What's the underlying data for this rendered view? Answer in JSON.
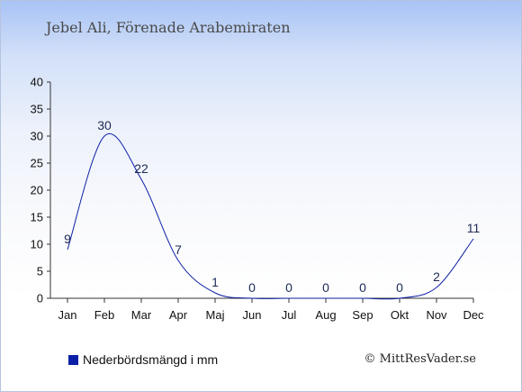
{
  "chart_data": {
    "type": "line",
    "title": "Jebel Ali, Förenade Arabemiraten",
    "categories": [
      "Jan",
      "Feb",
      "Mar",
      "Apr",
      "Maj",
      "Jun",
      "Jul",
      "Aug",
      "Sep",
      "Okt",
      "Nov",
      "Dec"
    ],
    "series": [
      {
        "name": "Nederbördsmängd i mm",
        "values": [
          9,
          30,
          22,
          7,
          1,
          0,
          0,
          0,
          0,
          0,
          2,
          11
        ],
        "data_labels": [
          "9",
          "30",
          "22",
          "7",
          "1",
          "0",
          "0",
          "0",
          "0",
          "0",
          "2",
          "11"
        ]
      }
    ],
    "yticks": [
      "0",
      "5",
      "10",
      "15",
      "20",
      "25",
      "30",
      "35",
      "40"
    ],
    "ylim": [
      0,
      40
    ],
    "xlabel": "",
    "ylabel": "",
    "grid": false,
    "legend_position": "bottom-left",
    "line_color": "#0b1fa6",
    "label_color": "#1d2a55"
  },
  "credit": "© MittResVader.se"
}
